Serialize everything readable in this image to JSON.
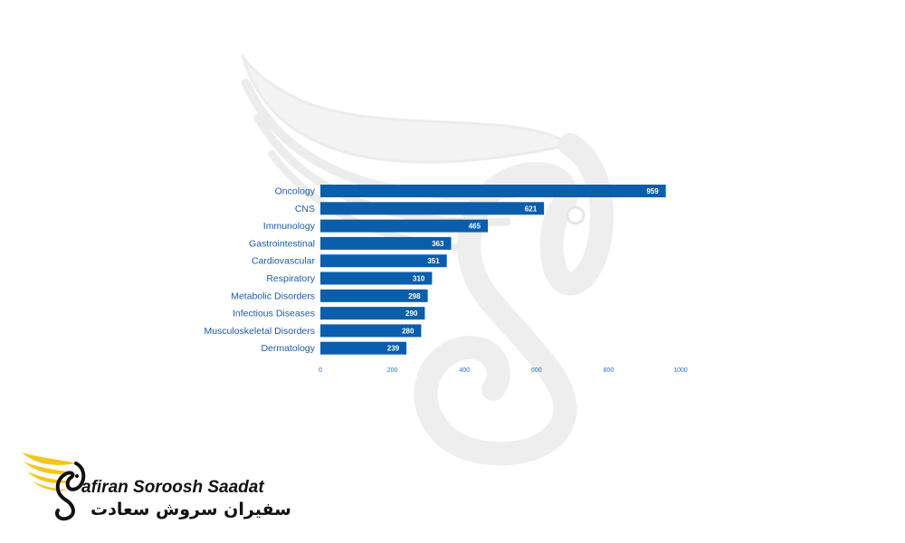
{
  "chart_data": {
    "type": "bar",
    "orientation": "horizontal",
    "categories": [
      "Oncology",
      "CNS",
      "Immunology",
      "Gastrointestinal",
      "Cardiovascular",
      "Respiratory",
      "Metabolic Disorders",
      "Infectious Diseases",
      "Musculoskeletal Disorders",
      "Dermatology"
    ],
    "values": [
      959,
      621,
      465,
      363,
      351,
      310,
      298,
      290,
      280,
      239
    ],
    "value_labels": [
      "959",
      "621",
      "465",
      "363",
      "351",
      "310",
      "298",
      "290",
      "280",
      "239"
    ],
    "xticks": [
      0,
      200,
      400,
      600,
      800,
      1000
    ],
    "xtick_labels": [
      "0",
      "200",
      "400",
      "600",
      "800",
      "1000"
    ],
    "xlim": [
      0,
      1000
    ],
    "grid": false,
    "bar_color": "#0a5eab"
  },
  "logo": {
    "name_en": "afiran Soroosh Saadat",
    "name_fa": "سفیران سروش سعادت",
    "wing_color": "#f5c518",
    "emblem_color": "#111111"
  },
  "watermark": {
    "icon": "bird-swan-emblem-icon",
    "color": "#ebebeb"
  }
}
